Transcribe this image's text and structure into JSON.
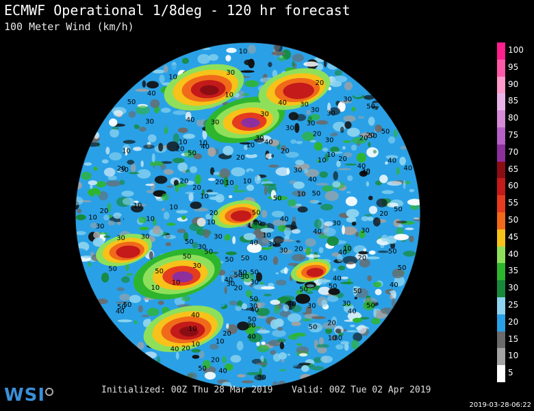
{
  "header": {
    "title": "ECMWF Operational 1/8deg - 120 hr forecast",
    "subtitle": "100 Meter Wind (km/h)"
  },
  "legend": {
    "items": [
      {
        "label": "100",
        "color": "#ff1f8e"
      },
      {
        "label": "95",
        "color": "#ff5aa8"
      },
      {
        "label": "90",
        "color": "#ff9acb"
      },
      {
        "label": "85",
        "color": "#e9b3e8"
      },
      {
        "label": "80",
        "color": "#d78ad8"
      },
      {
        "label": "75",
        "color": "#b760c6"
      },
      {
        "label": "70",
        "color": "#8e2f9e"
      },
      {
        "label": "65",
        "color": "#8b0d14"
      },
      {
        "label": "60",
        "color": "#c41a1a"
      },
      {
        "label": "55",
        "color": "#e53b1e"
      },
      {
        "label": "50",
        "color": "#f06a1a"
      },
      {
        "label": "45",
        "color": "#f7c21a"
      },
      {
        "label": "40",
        "color": "#8ee05a"
      },
      {
        "label": "35",
        "color": "#2eb52e"
      },
      {
        "label": "30",
        "color": "#168a3a"
      },
      {
        "label": "25",
        "color": "#8dd4f0"
      },
      {
        "label": "20",
        "color": "#2aa1e6"
      },
      {
        "label": "15",
        "color": "#6a6a6a"
      },
      {
        "label": "10",
        "color": "#a3a3a3"
      },
      {
        "label": "5",
        "color": "#ffffff"
      }
    ]
  },
  "footer": {
    "initialized": "Initialized: 00Z Thu 28 Mar 2019",
    "valid": "Valid: 00Z Tue 02 Apr 2019",
    "logo_text": "WSI",
    "timestamp": "2019-03-28-06:22"
  },
  "map": {
    "contour_labels": [
      "10",
      "20",
      "30",
      "40",
      "50"
    ]
  }
}
